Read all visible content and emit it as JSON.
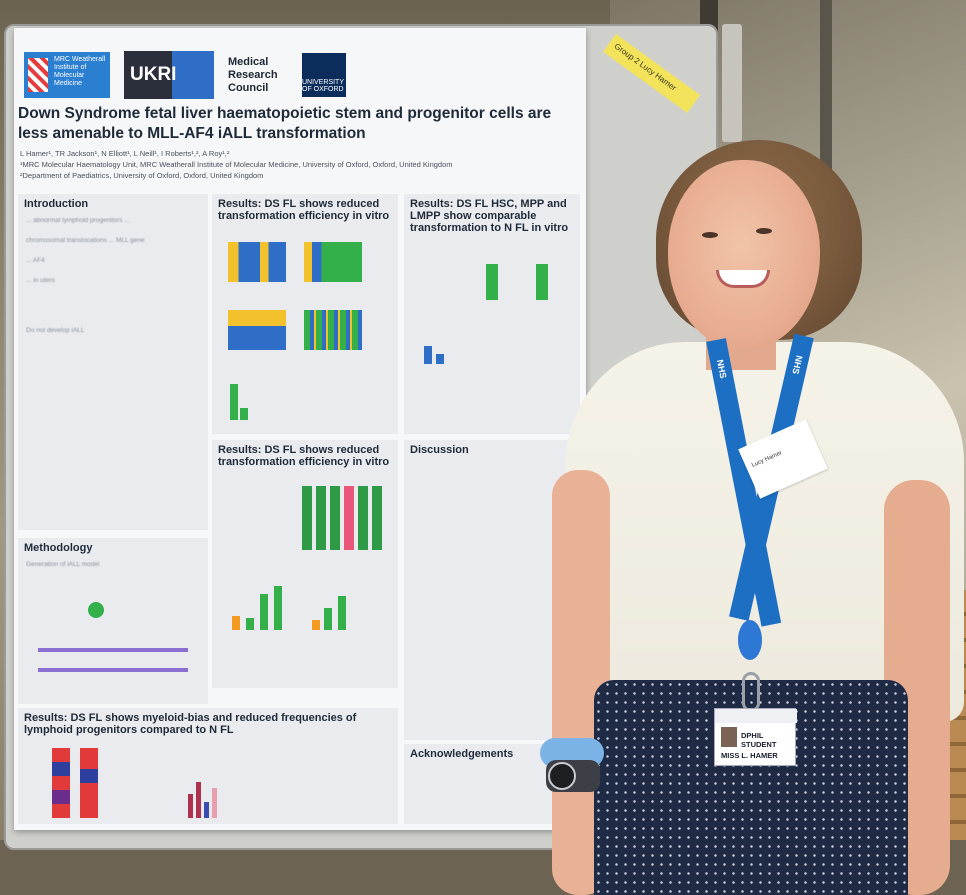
{
  "poster": {
    "logos": {
      "mrc_institute": "MRC Weatherall Institute of Molecular Medicine",
      "ukri": "UKRI",
      "council": "Medical Research Council",
      "oxford": "UNIVERSITY OF OXFORD"
    },
    "title": "Down Syndrome fetal liver haematopoietic stem and progenitor cells are less amenable to MLL-AF4 iALL transformation",
    "authors": "L Hamer¹, TR Jackson¹, N Elliott¹, L Neill¹, I Roberts¹,², A Roy¹,²",
    "affiliation1": "¹MRC Molecular Haematology Unit, MRC Weatherall Institute of Molecular Medicine, University of Oxford, Oxford, United Kingdom",
    "affiliation2": "²Department of Paediatrics, University of Oxford, Oxford, United Kingdom",
    "sections": {
      "introduction": "Introduction",
      "methodology": "Methodology",
      "results1": "Results: DS FL shows reduced transformation efficiency in vitro",
      "results2": "Results: DS FL shows reduced transformation efficiency in vitro",
      "results3": "Results: DS FL HSC, MPP and LMPP show comparable transformation to N FL in vitro",
      "results4": "Results: DS FL shows myeloid-bias and reduced frequencies of lymphoid progenitors compared to N FL",
      "discussion": "Discussion",
      "acknowledgements": "Acknowledgements"
    },
    "intro_bullets": [
      "... abnormal lymphoid progenitors ...",
      "chromosomal translocations ... MLL gene",
      "... AF4",
      "... in utero",
      "Do not develop iALL"
    ],
    "methodology_sub": "Generation of iALL model"
  },
  "note": "Lucy Hamer",
  "note_group": "Group 2",
  "lanyard_text": "NHS",
  "name_tag_text": "Lucy Hamer",
  "badge": {
    "role": "DPHIL STUDENT",
    "name": "MISS L. HAMER"
  },
  "colors": {
    "poster_blue": "#2b7fd1",
    "lanyard": "#1d6fc4",
    "note_yellow": "#f2e35b"
  }
}
